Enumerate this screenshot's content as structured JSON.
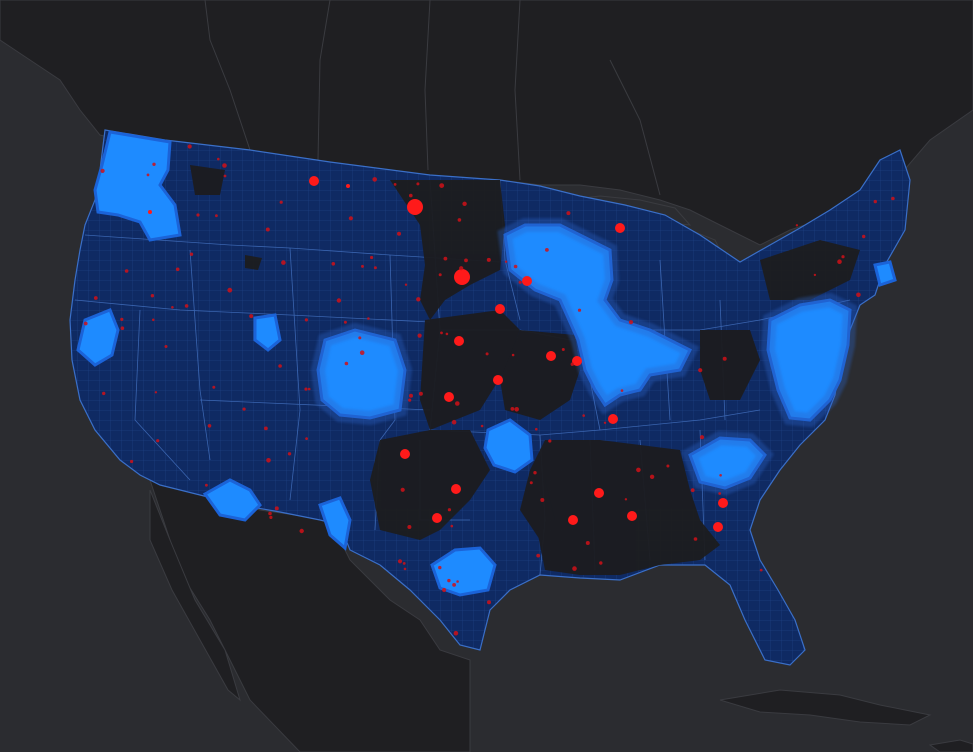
{
  "map": {
    "colors": {
      "background": "#2b2c30",
      "land": "#1f1f22",
      "land_edge": "#3a3b40",
      "county_fill": "#0f2a63",
      "county_line": "#2f5fb0",
      "hotspot": "#1e8bff",
      "hotspot_edge": "#1b63d8",
      "marker": "#ff1a1a",
      "marker_small": "#d01018"
    },
    "legend": [],
    "marker_count_large": 24,
    "marker_count_small": 140
  }
}
